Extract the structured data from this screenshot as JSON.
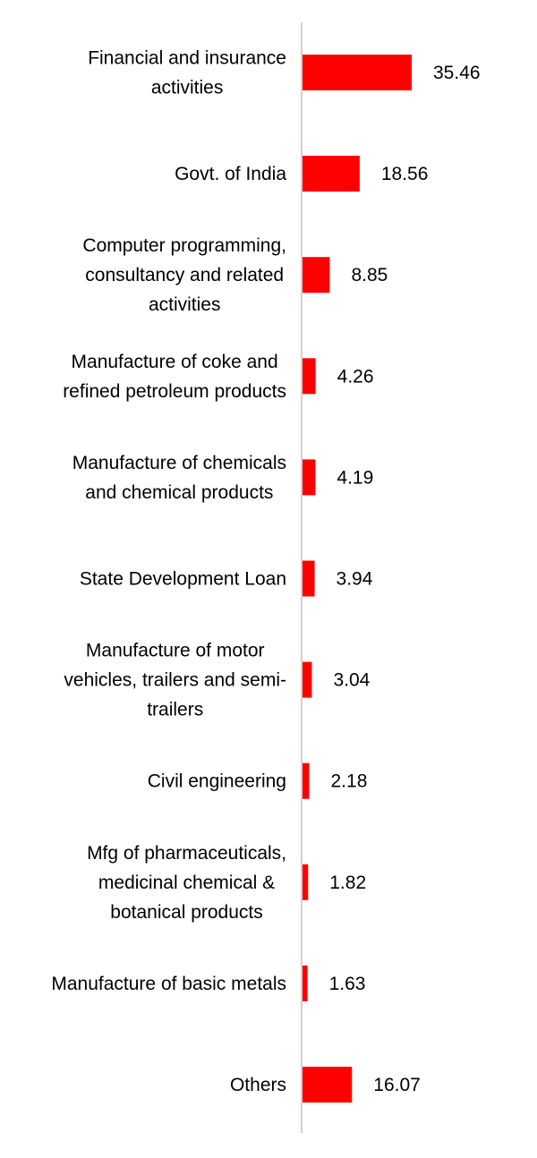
{
  "chart_data": {
    "type": "bar",
    "orientation": "horizontal",
    "categories": [
      "Financial and insurance activities",
      "Govt. of India",
      "Computer programming, consultancy and related activities",
      "Manufacture of coke and refined petroleum products",
      "Manufacture of chemicals and chemical products",
      "State Development Loan",
      "Manufacture of motor vehicles, trailers and semi-trailers",
      "Civil engineering",
      "Mfg of pharmaceuticals, medicinal chemical & botanical products",
      "Manufacture of basic metals",
      "Others"
    ],
    "category_lines": [
      [
        "Financial and insurance",
        "activities"
      ],
      [
        "Govt. of India"
      ],
      [
        "Computer programming,",
        "consultancy and related",
        "activities"
      ],
      [
        "Manufacture of coke and",
        "refined petroleum products"
      ],
      [
        "Manufacture of chemicals",
        "and chemical products"
      ],
      [
        "State Development Loan"
      ],
      [
        "Manufacture of motor",
        "vehicles, trailers and semi-",
        "trailers"
      ],
      [
        "Civil engineering"
      ],
      [
        "Mfg of pharmaceuticals,",
        "medicinal chemical &",
        "botanical products"
      ],
      [
        "Manufacture of basic metals"
      ],
      [
        "Others"
      ]
    ],
    "values": [
      35.46,
      18.56,
      8.85,
      4.26,
      4.19,
      3.94,
      3.04,
      2.18,
      1.82,
      1.63,
      16.07
    ],
    "value_labels": [
      "35.46",
      "18.56",
      "8.85",
      "4.26",
      "4.19",
      "3.94",
      "3.04",
      "2.18",
      "1.82",
      "1.63",
      "16.07"
    ],
    "title": "",
    "xlabel": "",
    "ylabel": "",
    "xlim": [
      0,
      35.46
    ],
    "grid": false,
    "legend": "none",
    "colors": {
      "bar": "#ff0000",
      "axis": "#d0d0d0",
      "text": "#000000"
    }
  }
}
